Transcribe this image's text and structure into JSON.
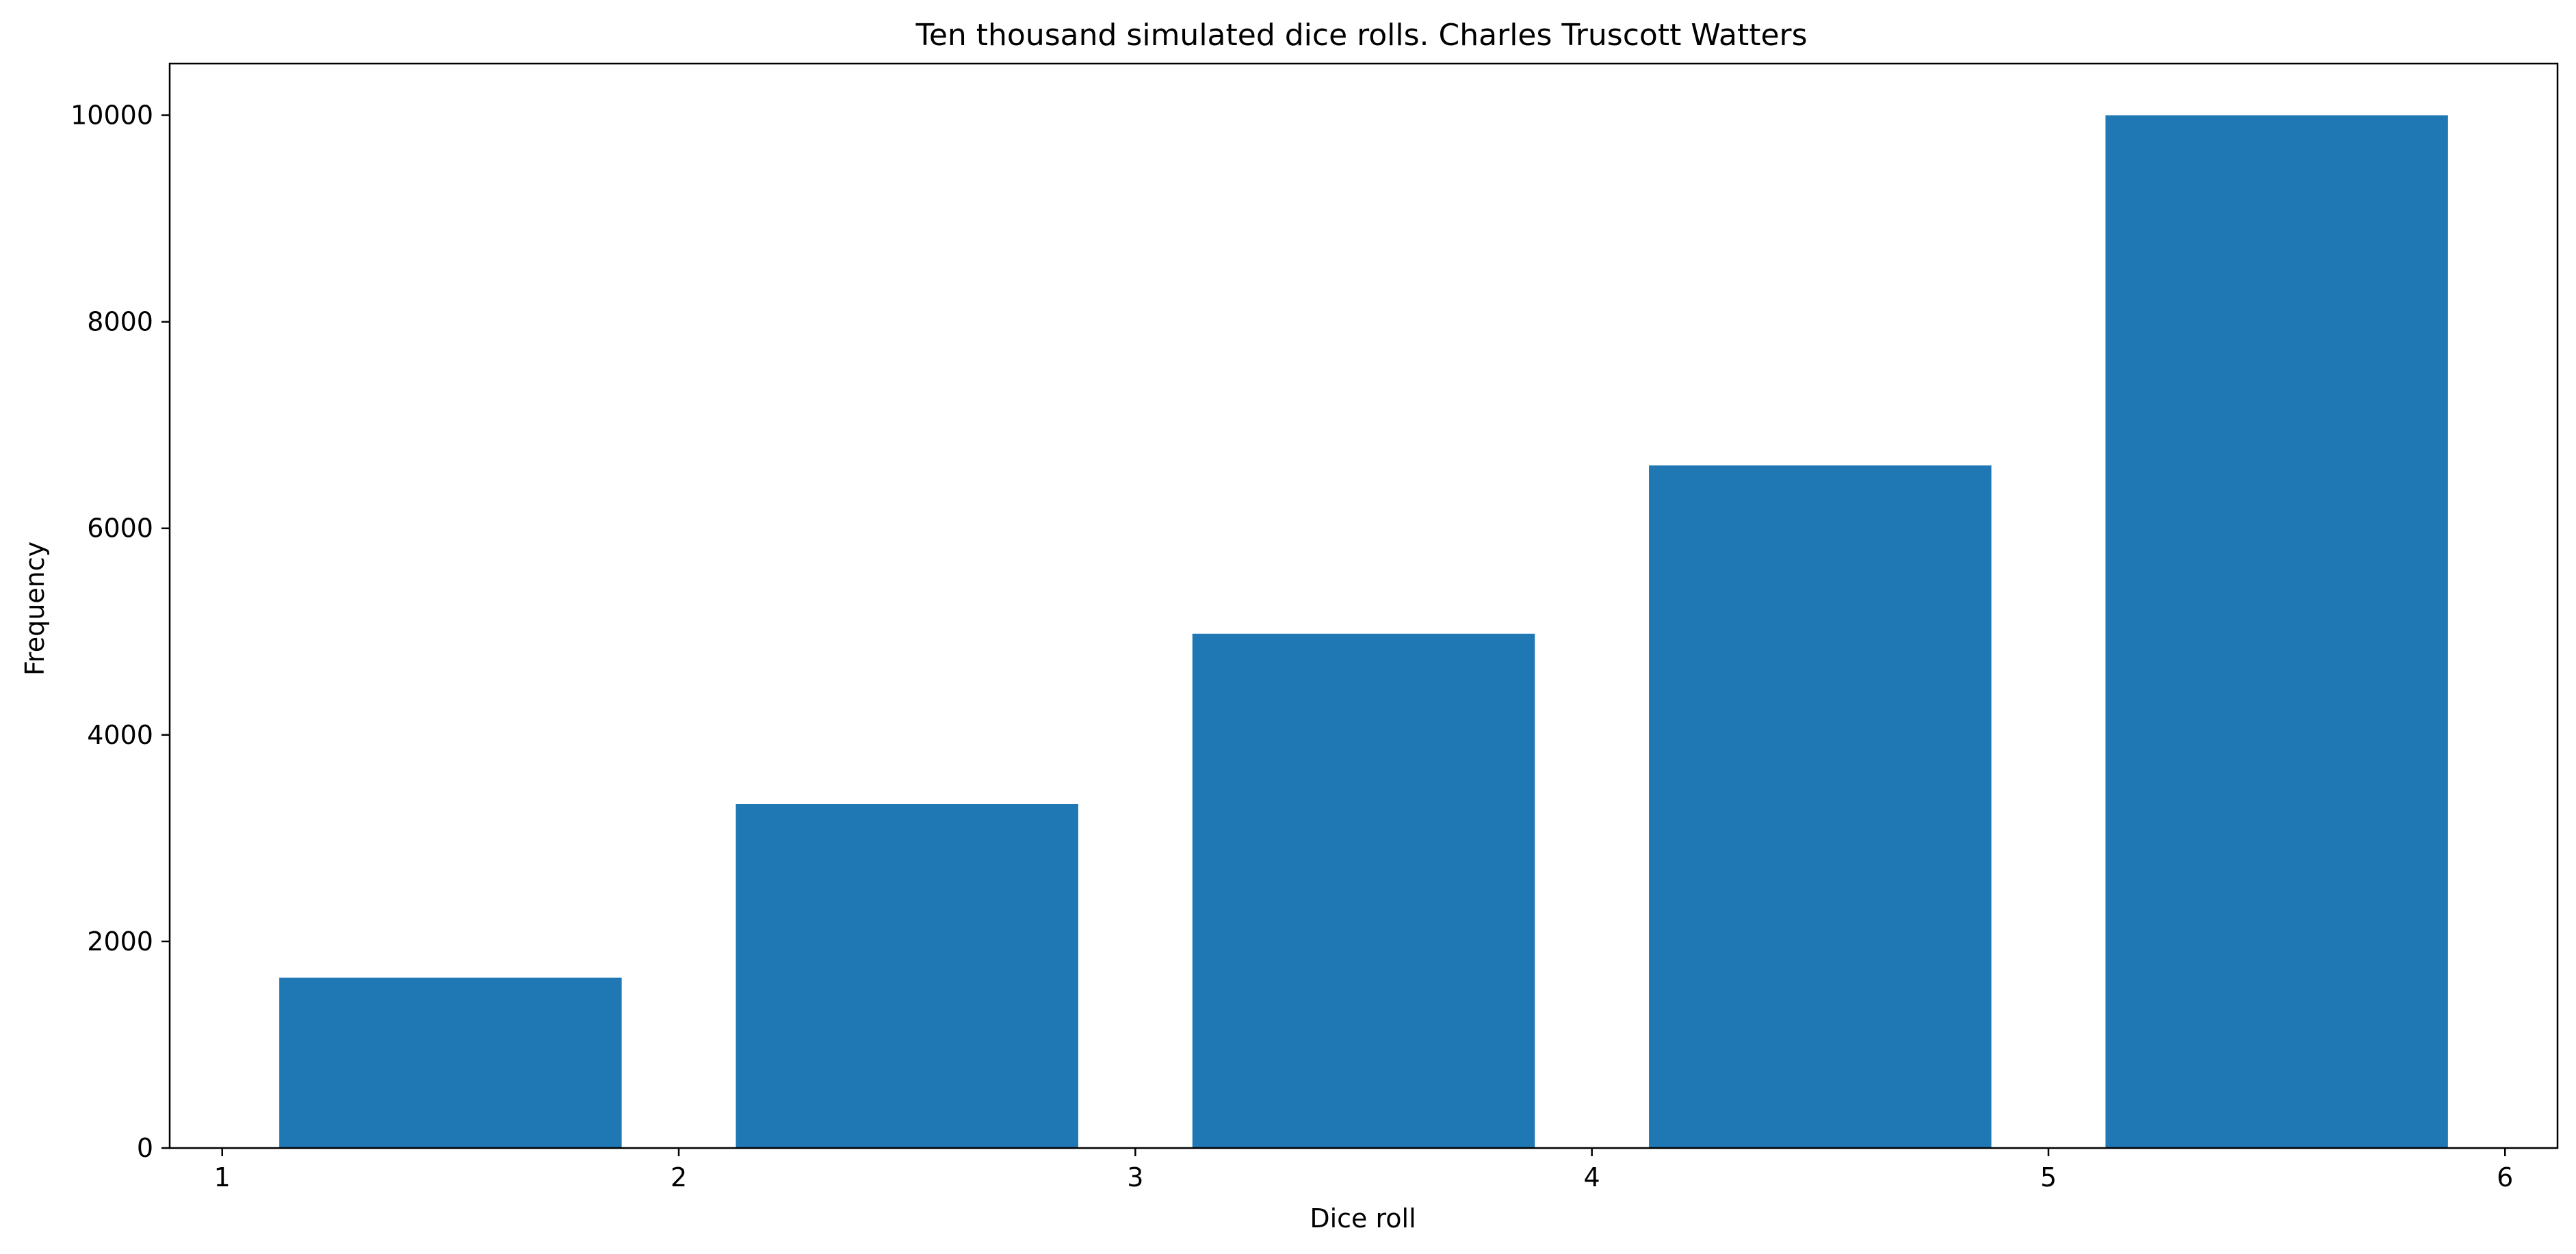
{
  "chart_data": {
    "type": "bar",
    "title": "Ten thousand simulated dice rolls. Charles Truscott Watters",
    "xlabel": "Dice roll",
    "ylabel": "Frequency",
    "bars": [
      {
        "x_start": 1,
        "x_end": 2,
        "value": 1650
      },
      {
        "x_start": 2,
        "x_end": 3,
        "value": 3330
      },
      {
        "x_start": 3,
        "x_end": 4,
        "value": 4980
      },
      {
        "x_start": 4,
        "x_end": 5,
        "value": 6610
      },
      {
        "x_start": 5,
        "x_end": 6,
        "value": 10000
      }
    ],
    "bar_fill_fraction": 0.75,
    "xlim": [
      0.885,
      6.115
    ],
    "ylim": [
      0,
      10500
    ],
    "xticks": [
      1,
      2,
      3,
      4,
      5,
      6
    ],
    "xtick_labels": [
      "1",
      "2",
      "3",
      "4",
      "5",
      "6"
    ],
    "yticks": [
      0,
      2000,
      4000,
      6000,
      8000,
      10000
    ],
    "ytick_labels": [
      "0",
      "2000",
      "4000",
      "6000",
      "8000",
      "10000"
    ],
    "grid": false,
    "bar_color": "#1f77b4"
  }
}
